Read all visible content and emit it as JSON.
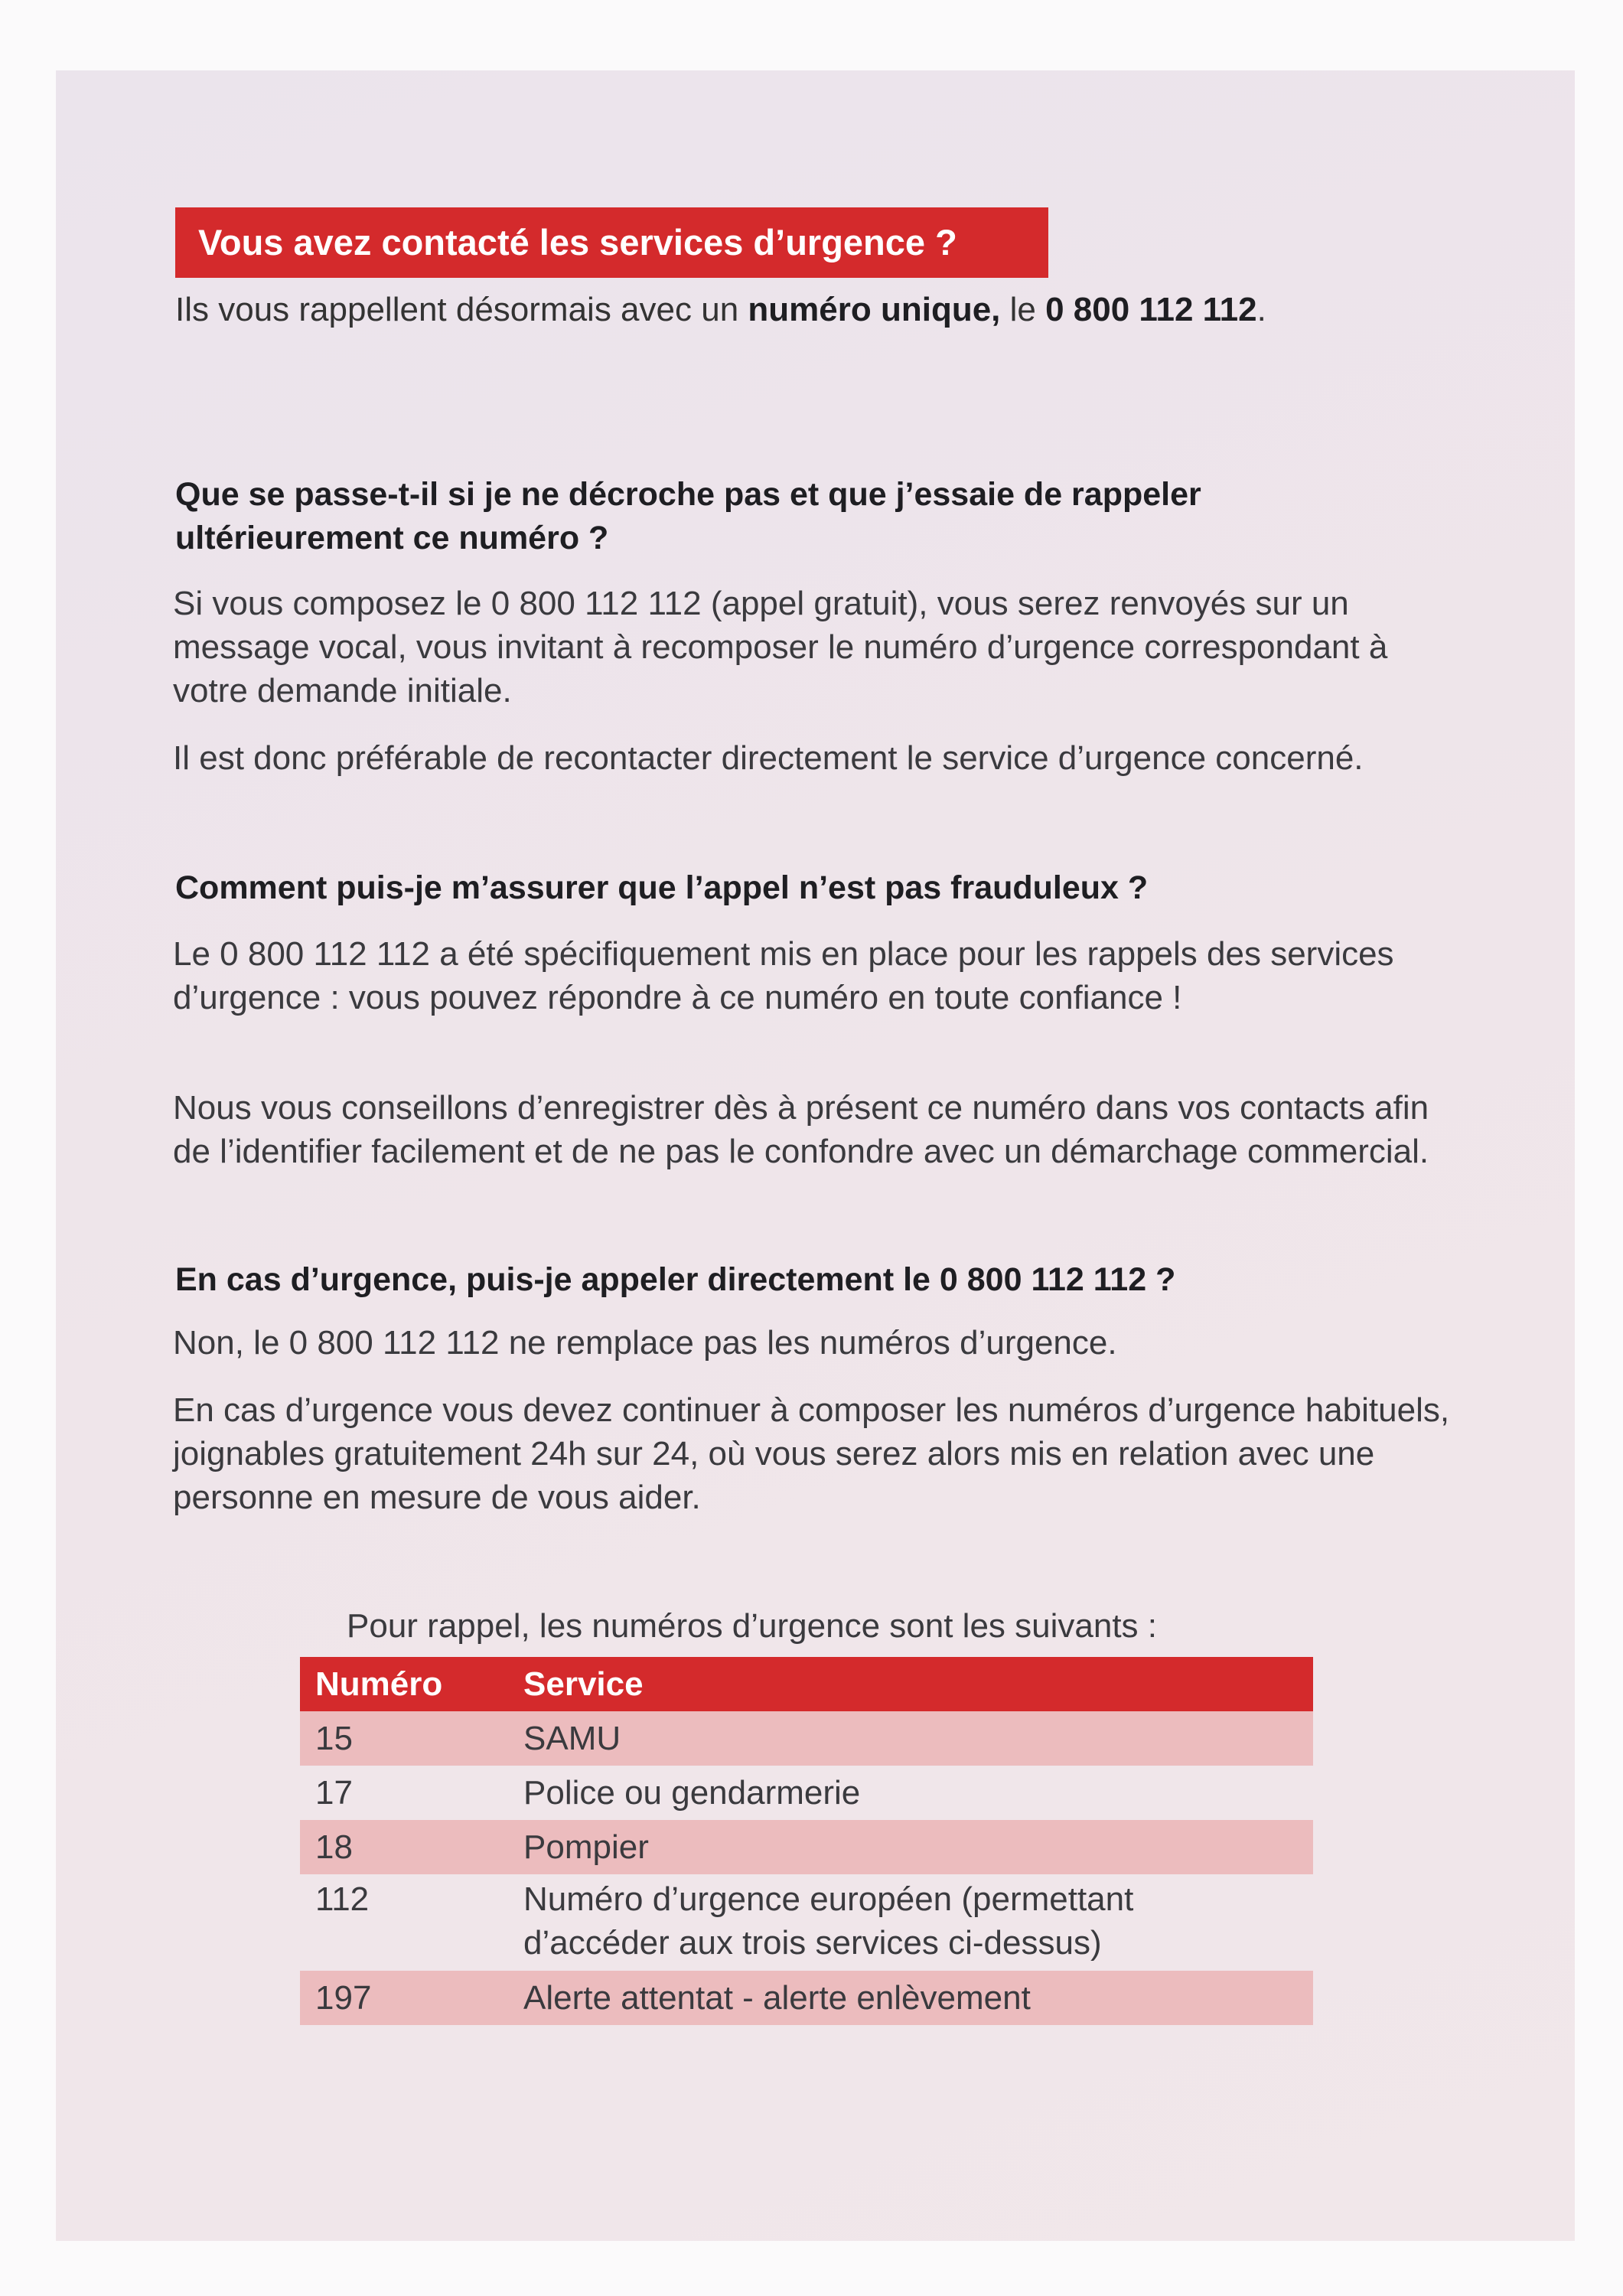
{
  "banner": {
    "title": "Vous avez contacté les services d’urgence ?"
  },
  "intro": {
    "prefix": "Ils vous rappellent désormais avec un ",
    "bold1": "numéro unique,",
    "middle": " le ",
    "bold2": "0 800 112 112",
    "suffix": "."
  },
  "sections": [
    {
      "question": "Que se passe-t-il si je ne décroche pas et que j’essaie de rappeler ultérieurement ce numéro ?",
      "paragraphs": [
        "Si vous composez le 0 800 112 112 (appel gratuit), vous serez renvoyés sur un message vocal, vous invitant à recomposer le numéro d’urgence correspondant à votre demande initiale.",
        "Il est donc préférable de recontacter directement le service d’urgence concerné."
      ]
    },
    {
      "question": "Comment puis-je m’assurer que l’appel n’est pas frauduleux ?",
      "paragraphs": [
        "Le 0 800 112 112 a été spécifiquement mis en place pour les rappels des services d’urgence : vous pouvez répondre à ce numéro en toute confiance !",
        "Nous vous conseillons d’enregistrer dès à présent ce numéro dans vos contacts afin de l’identifier facilement et de ne pas le confondre avec un démarchage commercial."
      ]
    },
    {
      "question": "En cas d’urgence, puis-je appeler directement le 0 800 112 112 ?",
      "paragraphs": [
        "Non, le 0 800 112 112 ne remplace pas les numéros d’urgence.",
        "En cas d’urgence vous devez continuer à composer les numéros d’urgence habituels, joignables gratuitement 24h sur 24, où vous serez alors mis en relation avec une personne en mesure de vous aider."
      ]
    }
  ],
  "table": {
    "caption": "Pour rappel, les numéros d’urgence sont les suivants :",
    "headers": [
      "Numéro",
      "Service"
    ],
    "rows": [
      [
        "15",
        "SAMU"
      ],
      [
        "17",
        "Police ou gendarmerie"
      ],
      [
        "18",
        "Pompier"
      ],
      [
        "112",
        "Numéro d’urgence européen (permettant d’accéder aux trois services ci-dessus)"
      ],
      [
        "197",
        "Alerte attentat - alerte enlèvement"
      ]
    ]
  },
  "colors": {
    "accent": "#d42a2c",
    "row_shade": "#ecbcbe"
  }
}
